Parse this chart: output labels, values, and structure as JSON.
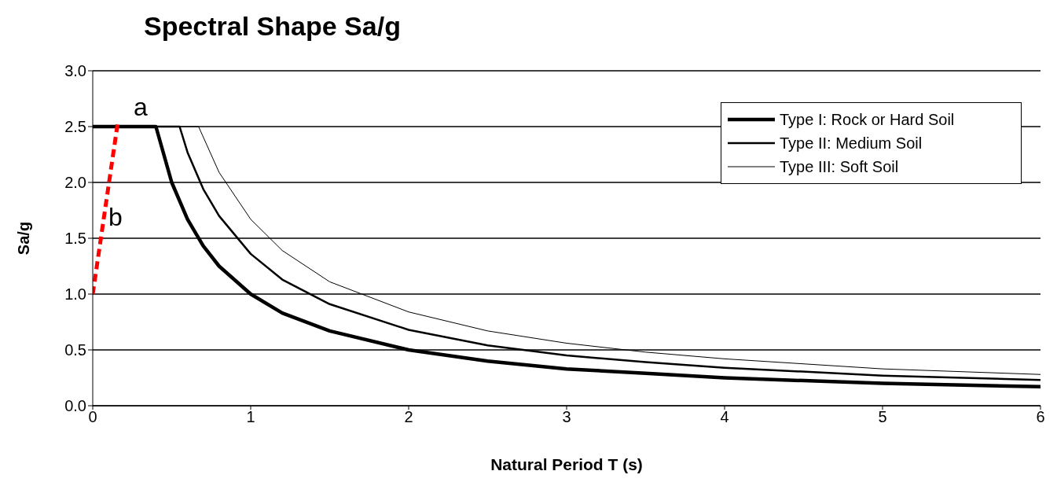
{
  "chart_data": {
    "type": "line",
    "title": "Spectral Shape Sa/g",
    "xlabel": "Natural Period T (s)",
    "ylabel": "Sa/g",
    "xlim": [
      0,
      6
    ],
    "xticks": [
      0,
      1,
      2,
      3,
      4,
      5,
      6
    ],
    "ylim": [
      0,
      3
    ],
    "yticks": [
      {
        "value": 0,
        "label": "0.0"
      },
      {
        "value": 0.5,
        "label": "0.5"
      },
      {
        "value": 1,
        "label": "1.0"
      },
      {
        "value": 1.5,
        "label": "1.5"
      },
      {
        "value": 2,
        "label": "2.0"
      },
      {
        "value": 2.5,
        "label": "2.5"
      },
      {
        "value": 3,
        "label": "3.0"
      }
    ],
    "grid": "y",
    "legend": "top right",
    "marker": "none",
    "annotations": [
      "a",
      "b"
    ],
    "series": [
      {
        "name": "Type I: Rock or Hard Soil",
        "color": "#000000",
        "x": [
          0,
          0.4,
          0.5,
          0.6,
          0.7,
          0.8,
          1,
          1.2,
          1.5,
          2,
          2.5,
          3,
          3.5,
          4,
          5,
          6
        ],
        "values": [
          2.5,
          2.5,
          2,
          1.67,
          1.43,
          1.25,
          1,
          0.83,
          0.67,
          0.5,
          0.4,
          0.33,
          0.29,
          0.25,
          0.2,
          0.17
        ]
      },
      {
        "name": "Type II: Medium Soil",
        "color": "#000000",
        "x": [
          0,
          0.55,
          0.6,
          0.7,
          0.8,
          1,
          1.2,
          1.5,
          2,
          2.5,
          3,
          3.5,
          4,
          5,
          6
        ],
        "values": [
          2.5,
          2.5,
          2.27,
          1.94,
          1.7,
          1.36,
          1.13,
          0.91,
          0.68,
          0.54,
          0.45,
          0.39,
          0.34,
          0.27,
          0.23
        ]
      },
      {
        "name": "Type III: Soft Soil",
        "color": "#000000",
        "x": [
          0,
          0.67,
          0.8,
          1,
          1.2,
          1.5,
          2,
          2.5,
          3,
          3.5,
          4,
          5,
          6
        ],
        "values": [
          2.5,
          2.5,
          2.09,
          1.67,
          1.39,
          1.11,
          0.84,
          0.67,
          0.56,
          0.48,
          0.42,
          0.33,
          0.28
        ]
      },
      {
        "color": "#ff0000",
        "line_style": "dashed",
        "x": [
          0,
          0.16
        ],
        "values": [
          1,
          2.55
        ]
      }
    ]
  }
}
